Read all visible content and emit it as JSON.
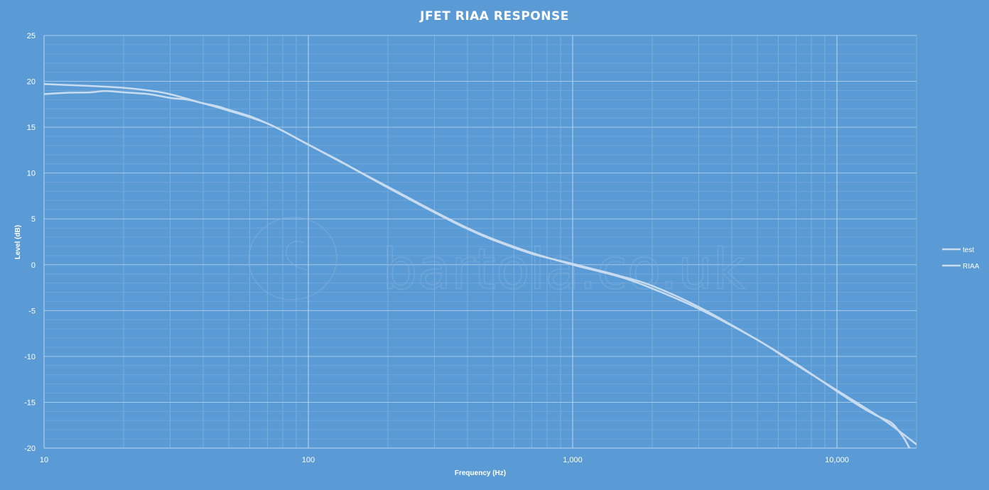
{
  "watermark": "bartola.co.uk",
  "chart_data": {
    "type": "line",
    "title": "JFET RIAA RESPONSE",
    "xlabel": "Frequency (Hz)",
    "ylabel": "Level (dB)",
    "xscale": "log",
    "xlim": [
      10,
      20000
    ],
    "ylim": [
      -20,
      25
    ],
    "xticks": [
      {
        "value": 10,
        "label": "10"
      },
      {
        "value": 100,
        "label": "100"
      },
      {
        "value": 1000,
        "label": "1,000"
      },
      {
        "value": 10000,
        "label": "10,000"
      }
    ],
    "yticks": [
      25,
      20,
      15,
      10,
      5,
      0,
      -5,
      -10,
      -15,
      -20
    ],
    "grid": true,
    "legend": "right",
    "line_color": "#c9dcef",
    "series": [
      {
        "name": "test",
        "points": [
          [
            10,
            18.6
          ],
          [
            12,
            18.75
          ],
          [
            15,
            18.8
          ],
          [
            17,
            18.95
          ],
          [
            20,
            18.8
          ],
          [
            25,
            18.6
          ],
          [
            30,
            18.2
          ],
          [
            35,
            18.0
          ],
          [
            40,
            17.6
          ],
          [
            45,
            17.3
          ],
          [
            50,
            16.9
          ],
          [
            60,
            16.2
          ],
          [
            70,
            15.4
          ],
          [
            80,
            14.6
          ],
          [
            100,
            13.1
          ],
          [
            130,
            11.4
          ],
          [
            150,
            10.4
          ],
          [
            200,
            8.4
          ],
          [
            300,
            5.7
          ],
          [
            400,
            3.9
          ],
          [
            500,
            2.7
          ],
          [
            700,
            1.2
          ],
          [
            1000,
            0.1
          ],
          [
            1500,
            -1.2
          ],
          [
            2000,
            -2.3
          ],
          [
            3000,
            -4.6
          ],
          [
            5000,
            -8.2
          ],
          [
            7000,
            -10.8
          ],
          [
            10000,
            -13.8
          ],
          [
            12000,
            -15.3
          ],
          [
            14000,
            -16.4
          ],
          [
            16000,
            -17.2
          ],
          [
            17000,
            -18.0
          ],
          [
            18000,
            -19.0
          ],
          [
            18800,
            -20.0
          ]
        ]
      },
      {
        "name": "RIAA",
        "points": [
          [
            10,
            19.7
          ],
          [
            15,
            19.5
          ],
          [
            20,
            19.3
          ],
          [
            25,
            19.0
          ],
          [
            30,
            18.6
          ],
          [
            40,
            17.6
          ],
          [
            50,
            16.8
          ],
          [
            60,
            16.1
          ],
          [
            70,
            15.4
          ],
          [
            80,
            14.6
          ],
          [
            100,
            13.1
          ],
          [
            150,
            10.4
          ],
          [
            200,
            8.5
          ],
          [
            300,
            5.8
          ],
          [
            400,
            4.0
          ],
          [
            500,
            2.8
          ],
          [
            700,
            1.3
          ],
          [
            1000,
            0.0
          ],
          [
            1500,
            -1.3
          ],
          [
            2000,
            -2.6
          ],
          [
            3000,
            -4.8
          ],
          [
            5000,
            -8.2
          ],
          [
            7000,
            -10.9
          ],
          [
            10000,
            -13.7
          ],
          [
            15000,
            -16.9
          ],
          [
            20000,
            -19.6
          ]
        ]
      }
    ]
  }
}
